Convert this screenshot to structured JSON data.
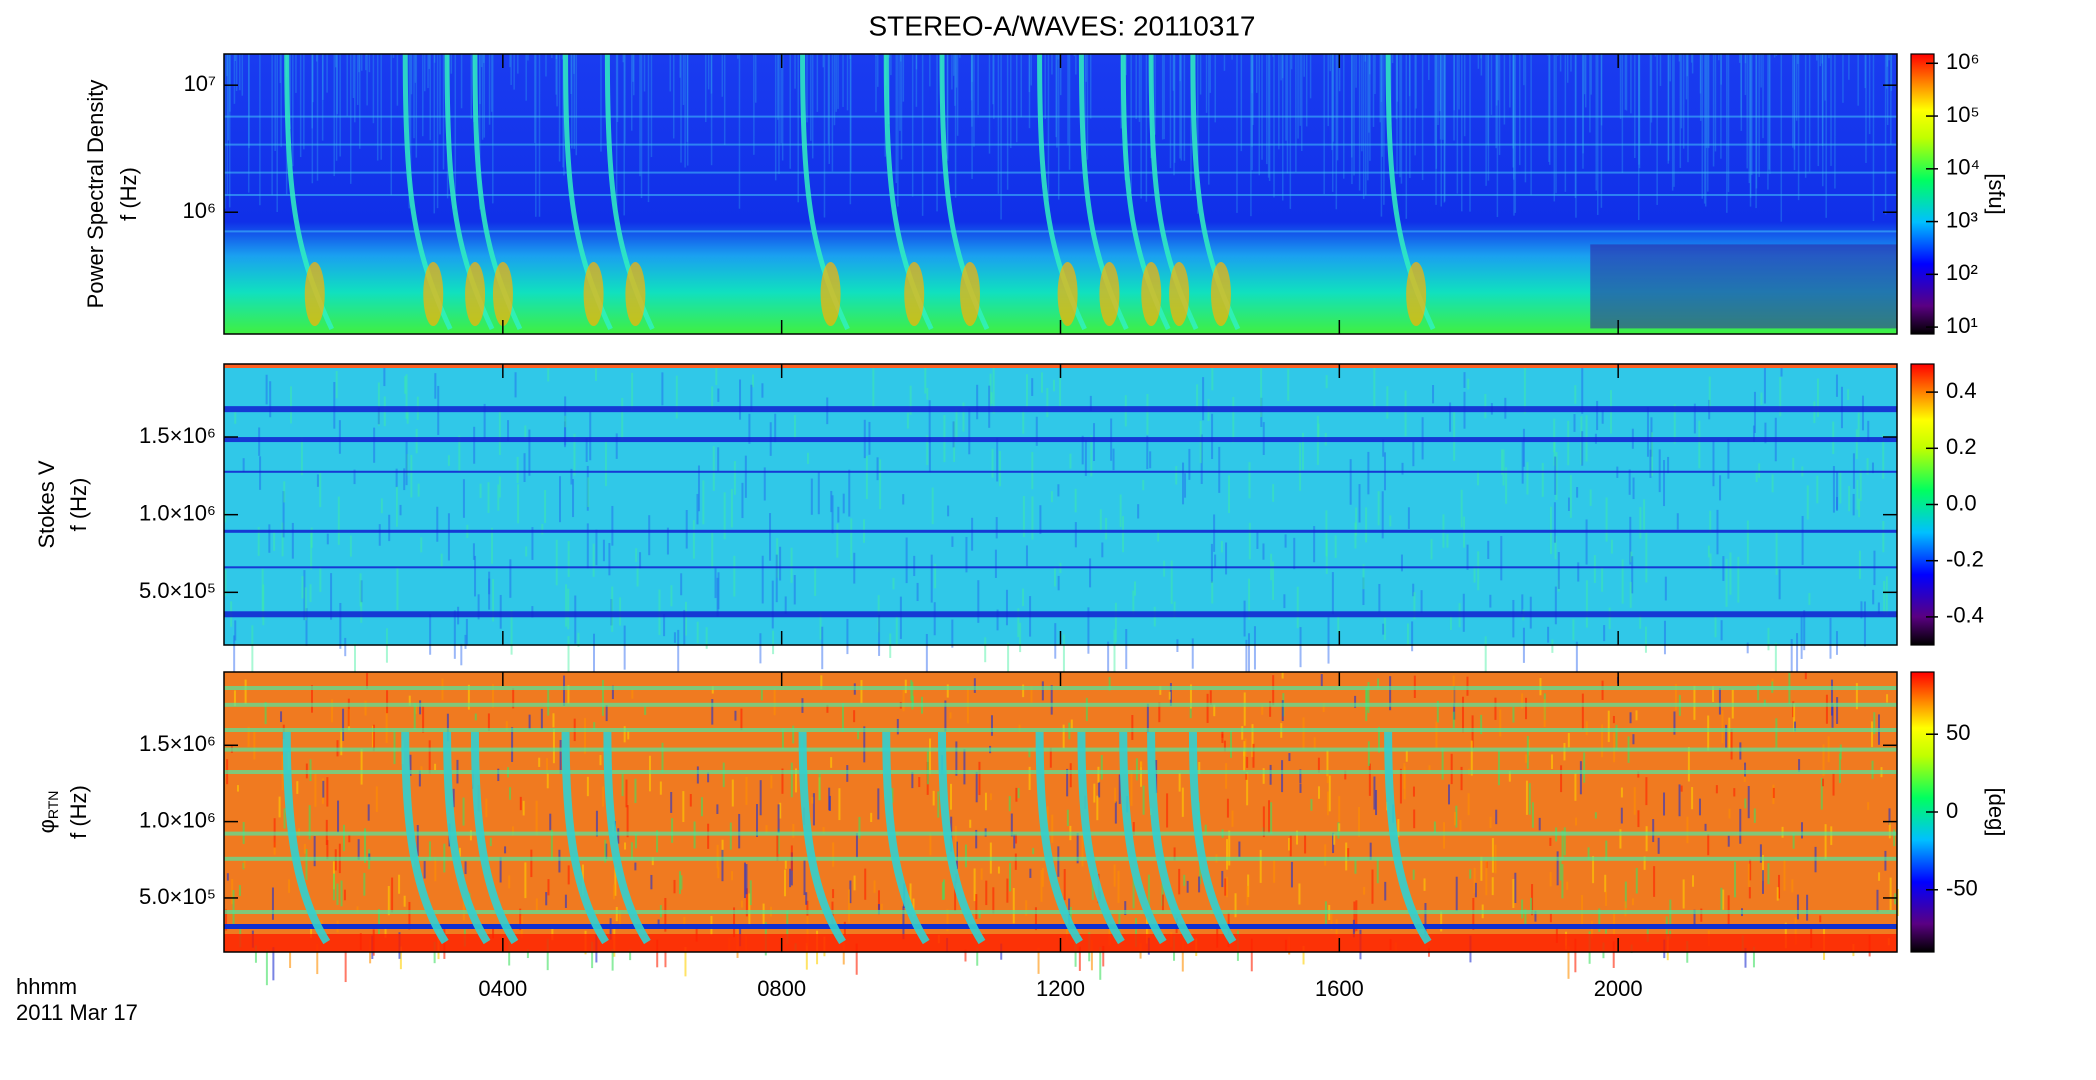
{
  "title": "STEREO-A/WAVES: 20110317",
  "x_axis": {
    "label": "hhmm",
    "date": "2011 Mar 17",
    "xlim": [
      0,
      24
    ],
    "xticks": [
      {
        "value": 4,
        "label": "0400"
      },
      {
        "value": 8,
        "label": "0800"
      },
      {
        "value": 12,
        "label": "1200"
      },
      {
        "value": 16,
        "label": "1600"
      },
      {
        "value": 20,
        "label": "2000"
      }
    ]
  },
  "chart_data": [
    {
      "type": "heatmap",
      "ylabel_lines": [
        "Power Spectral Density",
        "f (Hz)"
      ],
      "ylog": true,
      "ylim": [
        110000,
        17600000
      ],
      "yticks": [
        {
          "value": 1000000,
          "label": "10⁶"
        },
        {
          "value": 10000000,
          "label": "10⁷"
        }
      ],
      "colormap": "rainbow",
      "clog": true,
      "clim": [
        7.4,
        1500000
      ],
      "clabel": "[sfu]",
      "cticks": [
        {
          "value": 10,
          "label": "10¹"
        },
        {
          "value": 100,
          "label": "10²"
        },
        {
          "value": 1000,
          "label": "10³"
        },
        {
          "value": 10000,
          "label": "10⁴"
        },
        {
          "value": 100000,
          "label": "10⁵"
        },
        {
          "value": 1000000,
          "label": "10⁶"
        }
      ]
    },
    {
      "type": "heatmap",
      "ylabel_lines": [
        "Stokes V",
        "f (Hz)"
      ],
      "ylog": false,
      "ylim": [
        161000,
        1970000
      ],
      "yticks": [
        {
          "value": 500000,
          "label": "5.0×10⁵"
        },
        {
          "value": 1000000,
          "label": "1.0×10⁶"
        },
        {
          "value": 1500000,
          "label": "1.5×10⁶"
        }
      ],
      "colormap": "rainbow",
      "clog": false,
      "clim": [
        -0.5,
        0.5
      ],
      "cticks": [
        -0.4,
        -0.2,
        {
          "value": 0,
          "label": "0.0"
        },
        0.2,
        0.4
      ]
    },
    {
      "type": "heatmap",
      "ylabel_lines": [
        "φ",
        "f (Hz)"
      ],
      "ylabel_subscript": "RTN",
      "ylog": false,
      "ylim": [
        146000,
        1980000
      ],
      "yticks": [
        {
          "value": 500000,
          "label": "5.0×10⁵"
        },
        {
          "value": 1000000,
          "label": "1.0×10⁶"
        },
        {
          "value": 1500000,
          "label": "1.5×10⁶"
        }
      ],
      "colormap": "rainbow",
      "clog": false,
      "clim": [
        -90,
        90
      ],
      "clabel": "[deg]",
      "cticks": [
        -50,
        0,
        50
      ]
    }
  ]
}
